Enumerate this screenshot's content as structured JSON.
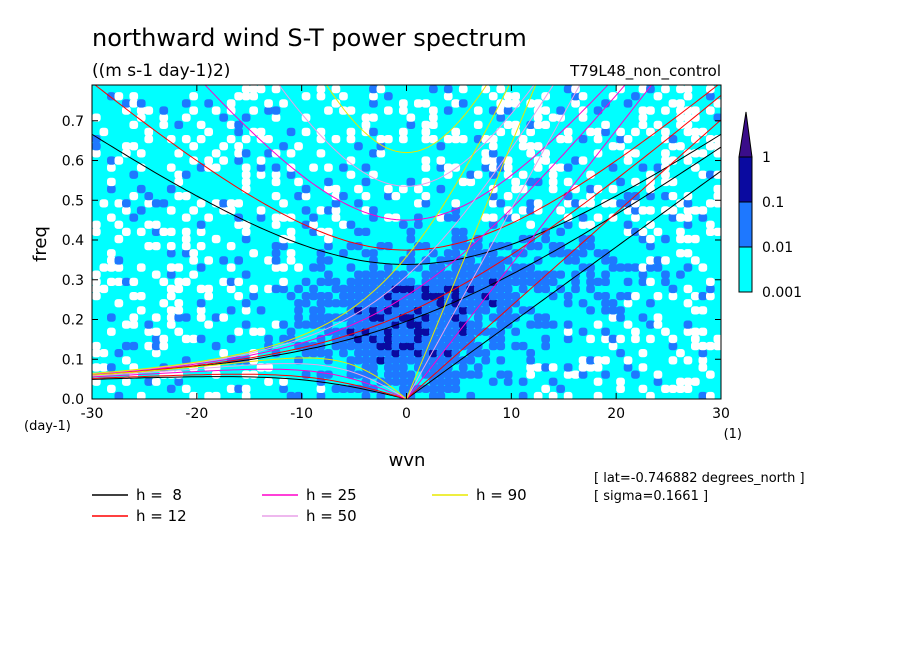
{
  "chart_data": {
    "type": "heatmap",
    "title": "northward wind S-T power spectrum",
    "subtitle": "((m s-1 day-1)2)",
    "run_label": "T79L48_non_control",
    "xlabel": "wvn",
    "ylabel": "freq",
    "x_unit": "(1)",
    "y_unit": "(day-1)",
    "xlim": [
      -30,
      30
    ],
    "ylim": [
      0,
      0.79
    ],
    "xticks": [
      -30,
      -20,
      -10,
      0,
      10,
      20,
      30
    ],
    "yticks": [
      0.0,
      0.1,
      0.2,
      0.3,
      0.4,
      0.5,
      0.6,
      0.7
    ],
    "xtick_labels": [
      "-30",
      "-20",
      "-10",
      "0",
      "10",
      "20",
      "30"
    ],
    "ytick_labels": [
      "0.0",
      "0.1",
      "0.2",
      "0.3",
      "0.4",
      "0.5",
      "0.6",
      "0.7"
    ],
    "colorbar": {
      "levels": [
        "0.001",
        "0.01",
        "0.1",
        "1"
      ],
      "colors": [
        "#00ffff",
        "#1e78ff",
        "#0a0aa0",
        "#3a0d8a"
      ],
      "below_color": "#ffffff"
    },
    "dispersion_curves": [
      {
        "label": "h =  8",
        "h": 8,
        "color": "#000000"
      },
      {
        "label": "h = 12",
        "h": 12,
        "color": "#ff0000"
      },
      {
        "label": "h = 25",
        "h": 25,
        "color": "#ff00cc"
      },
      {
        "label": "h = 50",
        "h": 50,
        "color": "#e8a0e8"
      },
      {
        "label": "h = 90",
        "h": 90,
        "color": "#e8e800"
      }
    ],
    "info": [
      "[ lat=-0.746882 degrees_north ]",
      "[ sigma=0.1661 ]"
    ]
  }
}
